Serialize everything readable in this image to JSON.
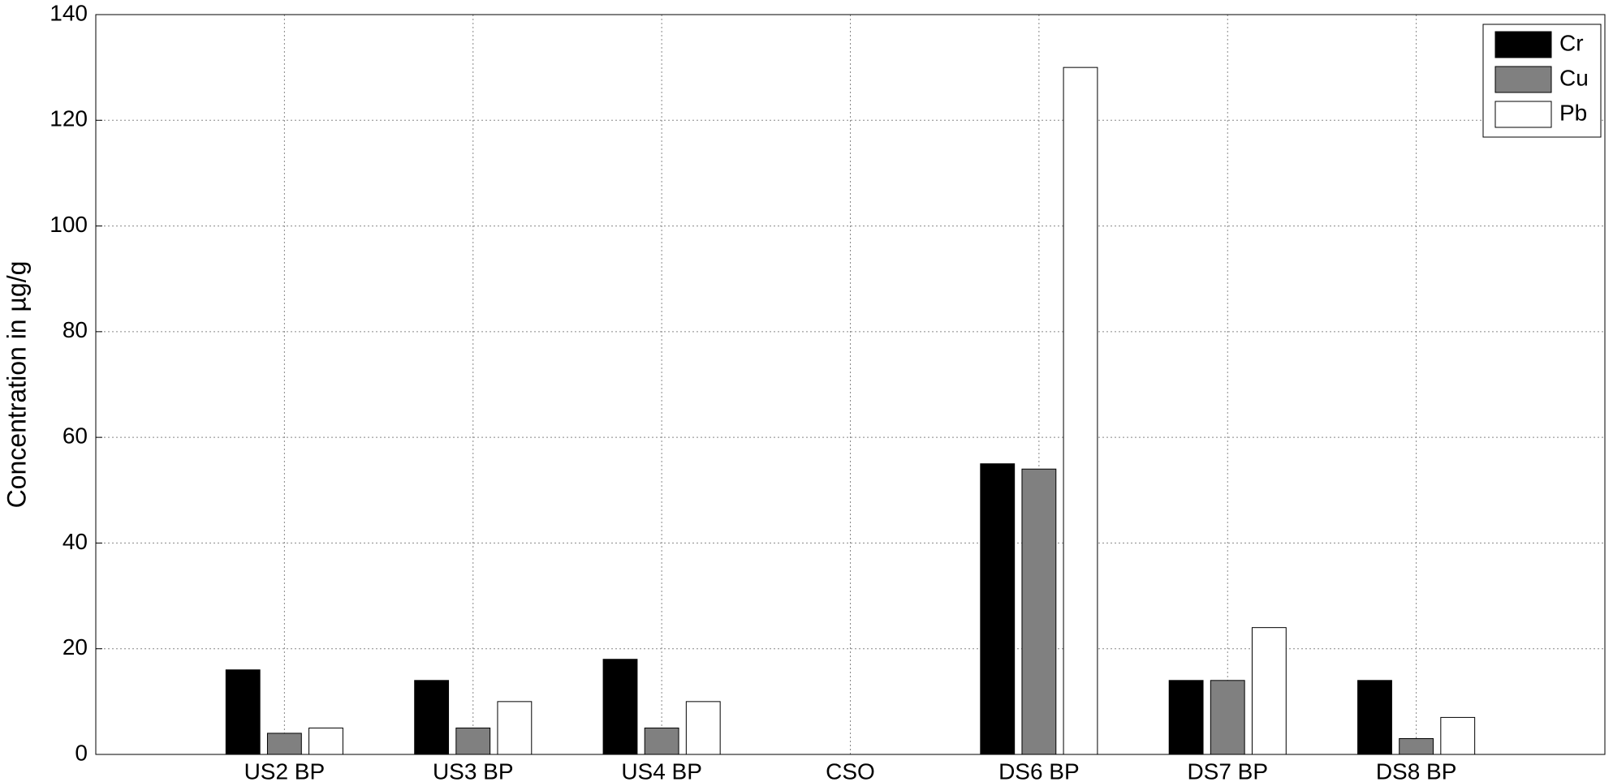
{
  "chart_data": {
    "type": "bar",
    "y_label": "Concentration in µg/g",
    "categories": [
      "US2 BP",
      "US3 BP",
      "US4 BP",
      "CSO",
      "DS6 BP",
      "DS7 BP",
      "DS8 BP"
    ],
    "series": [
      {
        "name": "Cr",
        "color": "#000000",
        "values": [
          16,
          14,
          18,
          0,
          55,
          14,
          14
        ]
      },
      {
        "name": "Cu",
        "color": "#808080",
        "values": [
          4,
          5,
          5,
          0,
          54,
          14,
          3
        ]
      },
      {
        "name": "Pb",
        "color": "#ffffff",
        "values": [
          5,
          10,
          10,
          0,
          130,
          24,
          7
        ]
      }
    ],
    "ylim": [
      0,
      140
    ],
    "yticks": [
      0,
      20,
      40,
      60,
      80,
      100,
      120,
      140
    ],
    "grid": true,
    "legend": "upper right"
  }
}
